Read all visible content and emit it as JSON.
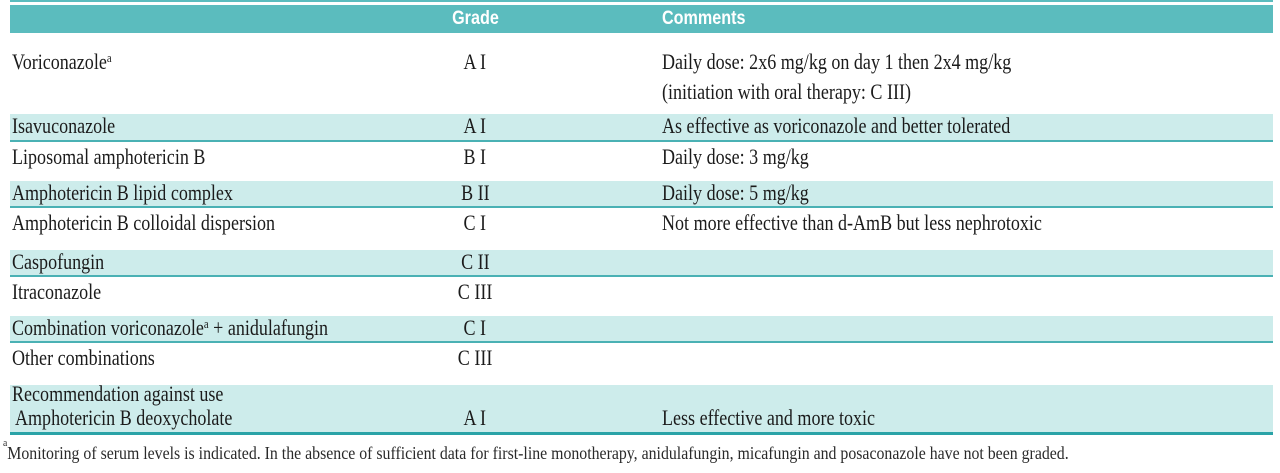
{
  "table": {
    "columns": {
      "name": "",
      "grade": "Grade",
      "comments": "Comments"
    },
    "rows": [
      {
        "name": "Voriconazole",
        "name_sup": "a",
        "name_post": "",
        "grade": "A I",
        "comment": "Daily dose: 2x6 mg/kg on day 1 then 2x4 mg/kg",
        "comment2": "(initiation with oral therapy: C III)"
      },
      {
        "name": "Isavuconazole",
        "grade": "A I",
        "comment": "As effective as voriconazole and better tolerated"
      },
      {
        "name": "Liposomal amphotericin B",
        "grade": "B I",
        "comment": "Daily dose: 3 mg/kg"
      },
      {
        "name": "Amphotericin B lipid complex",
        "grade": "B II",
        "comment": "Daily dose: 5 mg/kg"
      },
      {
        "name": "Amphotericin B colloidal dispersion",
        "grade": "C I",
        "comment": "Not more effective than d-AmB but less nephrotoxic"
      },
      {
        "name": "Caspofungin",
        "grade": "C II",
        "comment": ""
      },
      {
        "name": "Itraconazole",
        "grade": "C III",
        "comment": ""
      },
      {
        "name": "Combination voriconazole",
        "name_sup": "a",
        "name_post": " + anidulafungin",
        "grade": "C I",
        "comment": ""
      },
      {
        "name": "Other combinations",
        "grade": "C III",
        "comment": ""
      },
      {
        "name": "Recommendation against use",
        "name_line2": "Amphotericin B deoxycholate",
        "grade": "A I",
        "comment": "Less effective and more toxic"
      }
    ],
    "footnote_sup": "a",
    "footnote": "Monitoring of serum levels is indicated. In the absence of sufficient data for first-line monotherapy, anidulafungin, micafungin and posaconazole have not been graded."
  },
  "colors": {
    "header_teal": "#5bbcbe",
    "row_shade": "#cdeceb",
    "row_rule": "#4ab1b4",
    "bottom_rule": "#2aa3a7",
    "header_text": "#ffffff",
    "body_text": "#1b1b1b"
  }
}
